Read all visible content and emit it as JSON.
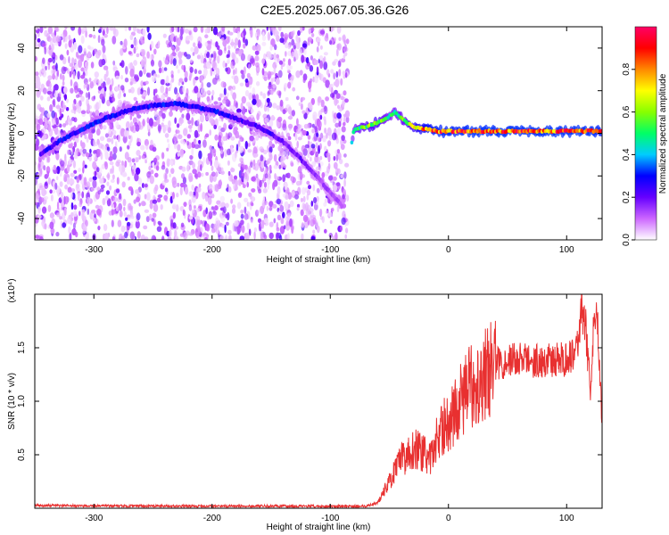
{
  "title": "C2E5.2025.067.05.36.G26",
  "colors": {
    "snr_line": "#e83030",
    "axis": "#000000"
  },
  "chart_data": [
    {
      "id": "spectrogram",
      "type": "heatmap",
      "xlabel": "Height of straight line (km)",
      "ylabel": "Frequency (Hz)",
      "xlim": [
        -350,
        130
      ],
      "ylim": [
        -50,
        50
      ],
      "x_ticks": [
        -300,
        -200,
        -100,
        0,
        100
      ],
      "y_ticks": [
        -40,
        -20,
        0,
        20,
        40
      ],
      "colorbar": {
        "label": "Normalized spectral amplitude",
        "range": [
          0.0,
          1.0
        ],
        "ticks": [
          0.0,
          0.2,
          0.4,
          0.6,
          0.8
        ],
        "colormap": [
          "#ffffff",
          "#cc66ff",
          "#6600ff",
          "#0000ff",
          "#00ccff",
          "#00ff66",
          "#88ff00",
          "#ffff00",
          "#ff8800",
          "#ff0000",
          "#ff0066"
        ]
      },
      "noise_region": {
        "x_range": [
          -350,
          -85
        ],
        "description": "scattered noise across all frequencies"
      },
      "signal_track": {
        "x": [
          -345,
          -330,
          -310,
          -290,
          -270,
          -250,
          -230,
          -210,
          -195,
          -180,
          -165,
          -150,
          -140,
          -130,
          -120,
          -110,
          -100,
          -90,
          -80,
          -70,
          -60,
          -50,
          -45,
          -40,
          -35,
          -30,
          -20,
          -10,
          0,
          20,
          40,
          60,
          80,
          100,
          120,
          130
        ],
        "y": [
          -10,
          -4,
          2,
          7,
          11,
          13,
          14,
          12,
          10,
          7,
          4,
          0,
          -4,
          -9,
          -15,
          -21,
          -28,
          -34,
          2,
          3,
          5,
          8,
          10,
          7,
          5,
          3,
          2,
          1,
          1,
          1,
          1,
          1,
          1,
          1,
          1,
          1
        ],
        "amplitude": [
          0.25,
          0.3,
          0.3,
          0.3,
          0.3,
          0.3,
          0.3,
          0.3,
          0.3,
          0.25,
          0.25,
          0.25,
          0.2,
          0.2,
          0.2,
          0.15,
          0.15,
          0.12,
          0.5,
          0.6,
          0.65,
          0.5,
          0.5,
          0.55,
          0.6,
          0.7,
          0.85,
          0.9,
          0.9,
          0.92,
          0.92,
          0.92,
          0.92,
          0.92,
          0.92,
          0.9
        ]
      }
    },
    {
      "id": "snr",
      "type": "line",
      "xlabel": "Height of straight line (km)",
      "ylabel": "SNR (10 * v/v)",
      "y_multiplier": "(x10⁴)",
      "xlim": [
        -350,
        130
      ],
      "ylim": [
        0,
        2.0
      ],
      "x_ticks": [
        -300,
        -200,
        -100,
        0,
        100
      ],
      "y_ticks": [
        0.5,
        1.0,
        1.5
      ],
      "series": [
        {
          "x": [
            -350,
            -300,
            -250,
            -200,
            -150,
            -100,
            -70,
            -60,
            -55,
            -50,
            -45,
            -40,
            -35,
            -30,
            -25,
            -20,
            -15,
            -10,
            -5,
            0,
            5,
            10,
            15,
            20,
            25,
            30,
            35,
            40,
            50,
            60,
            70,
            80,
            90,
            100,
            105,
            110,
            113,
            116,
            120,
            123,
            126,
            128,
            130
          ],
          "y": [
            0.025,
            0.022,
            0.02,
            0.02,
            0.02,
            0.018,
            0.02,
            0.05,
            0.15,
            0.25,
            0.35,
            0.45,
            0.5,
            0.55,
            0.55,
            0.5,
            0.45,
            0.65,
            0.75,
            0.8,
            0.9,
            1.0,
            1.1,
            1.15,
            1.2,
            1.25,
            1.3,
            1.35,
            1.38,
            1.4,
            1.38,
            1.38,
            1.38,
            1.4,
            1.45,
            1.6,
            1.85,
            1.7,
            1.1,
            1.7,
            1.75,
            1.3,
            0.8
          ]
        }
      ]
    }
  ]
}
